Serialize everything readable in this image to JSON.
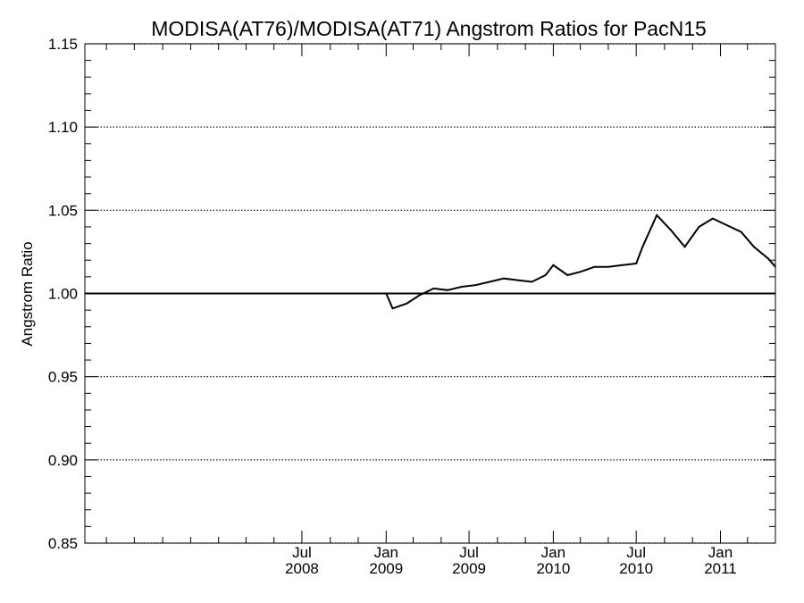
{
  "chart_data": {
    "type": "line",
    "title": "MODISA(AT76)/MODISA(AT71)  Angstrom Ratios for PacN15",
    "xlabel": "",
    "ylabel": "Angstrom Ratio",
    "ylim": [
      0.85,
      1.15
    ],
    "xlim": [
      "2007-03-15",
      "2011-05-01"
    ],
    "y_ticks": [
      0.85,
      0.9,
      0.95,
      1.0,
      1.05,
      1.1,
      1.15
    ],
    "y_tick_labels": [
      "0.85",
      "0.90",
      "0.95",
      "1.00",
      "1.05",
      "1.10",
      "1.15"
    ],
    "x_ticks": [
      {
        "date": "2008-07-01",
        "month": "Jul",
        "year": "2008"
      },
      {
        "date": "2009-01-01",
        "month": "Jan",
        "year": "2009"
      },
      {
        "date": "2009-07-01",
        "month": "Jul",
        "year": "2009"
      },
      {
        "date": "2010-01-01",
        "month": "Jan",
        "year": "2010"
      },
      {
        "date": "2010-07-01",
        "month": "Jul",
        "year": "2010"
      },
      {
        "date": "2011-01-01",
        "month": "Jan",
        "year": "2011"
      }
    ],
    "grid": "horizontal dotted",
    "reference_line": 1.0,
    "series": [
      {
        "color": "#000000",
        "x": [
          "2008-12-01",
          "2008-12-20",
          "2009-01-01",
          "2009-01-15",
          "2009-02-15",
          "2009-03-15",
          "2009-04-15",
          "2009-05-15",
          "2009-06-15",
          "2009-07-15",
          "2009-08-15",
          "2009-09-15",
          "2009-10-15",
          "2009-11-15",
          "2009-12-15",
          "2010-01-01",
          "2010-02-01",
          "2010-03-01",
          "2010-04-01",
          "2010-05-01",
          "2010-06-01",
          "2010-07-01",
          "2010-07-15",
          "2010-08-15",
          "2010-09-15",
          "2010-10-15",
          "2010-11-15",
          "2010-12-15",
          "2011-01-15",
          "2011-02-15",
          "2011-03-15",
          "2011-04-15",
          "2011-05-01"
        ],
        "y": [
          1.0,
          1.0,
          1.0,
          0.991,
          0.994,
          0.999,
          1.003,
          1.002,
          1.004,
          1.005,
          1.007,
          1.009,
          1.008,
          1.007,
          1.011,
          1.017,
          1.011,
          1.013,
          1.016,
          1.016,
          1.017,
          1.018,
          1.028,
          1.047,
          1.038,
          1.028,
          1.04,
          1.045,
          1.041,
          1.037,
          1.028,
          1.021,
          1.016
        ]
      }
    ]
  }
}
